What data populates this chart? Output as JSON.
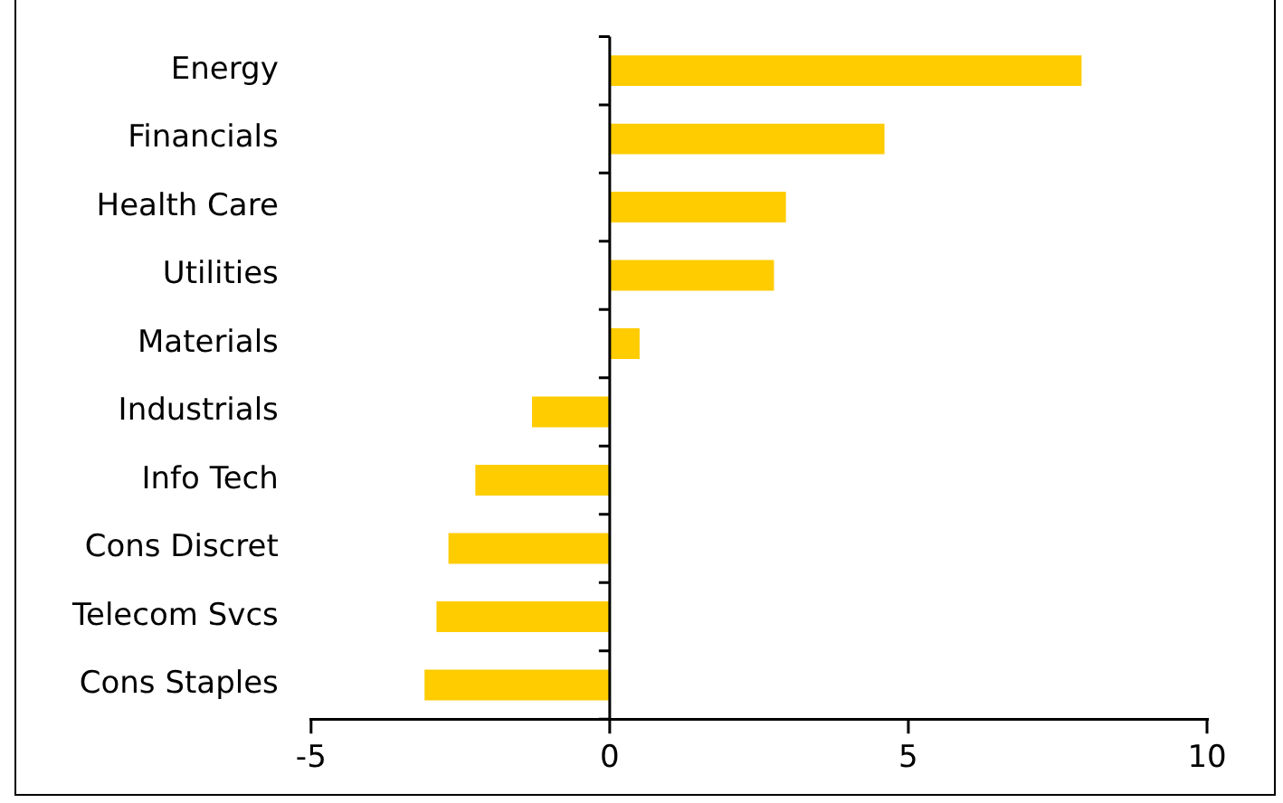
{
  "chart_data": {
    "type": "bar",
    "orientation": "horizontal",
    "categories": [
      "Energy",
      "Financials",
      "Health Care",
      "Utilities",
      "Materials",
      "Industrials",
      "Info Tech",
      "Cons Discret",
      "Telecom Svcs",
      "Cons Staples"
    ],
    "values": [
      7.9,
      4.6,
      2.95,
      2.75,
      0.5,
      -1.3,
      -2.25,
      -2.7,
      -2.9,
      -3.1
    ],
    "color": "#ffcc00",
    "xlim": [
      -5,
      10
    ],
    "xticks": [
      -5,
      0,
      5,
      10
    ],
    "legend": false
  }
}
